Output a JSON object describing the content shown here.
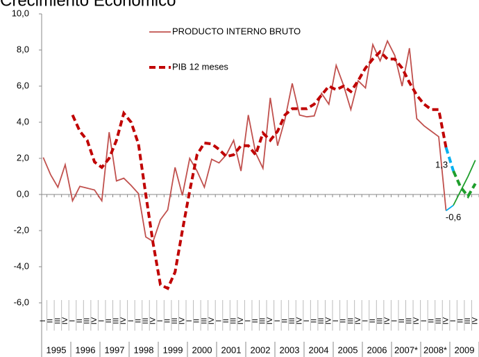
{
  "chart_data": {
    "type": "line",
    "title": "Crecimiento Económico",
    "categories": [
      "I",
      "II",
      "III",
      "IV",
      "I",
      "II",
      "III",
      "IV",
      "I",
      "II",
      "III",
      "IV",
      "I",
      "II",
      "III",
      "IV",
      "I",
      "II",
      "III",
      "IV",
      "I",
      "II",
      "III",
      "IV",
      "I",
      "II",
      "III",
      "IV",
      "I",
      "II",
      "III",
      "IV",
      "I",
      "II",
      "III",
      "IV",
      "I",
      "II",
      "III",
      "IV",
      "I",
      "II",
      "III",
      "IV",
      "I",
      "II",
      "III",
      "IV",
      "I",
      "II",
      "III",
      "IV",
      "I",
      "II",
      "III",
      "IV",
      "I",
      "II",
      "III",
      "IV"
    ],
    "years": [
      "1995",
      "1996",
      "1997",
      "1998",
      "1999",
      "2000",
      "2001",
      "2002",
      "2003",
      "2004",
      "2005",
      "2006",
      "2007*",
      "2008*",
      "2009"
    ],
    "ylim": [
      -6,
      10
    ],
    "yticks": [
      {
        "value": -6,
        "label": "-6,0"
      },
      {
        "value": -4,
        "label": "-4,0"
      },
      {
        "value": -2,
        "label": "-2,0"
      },
      {
        "value": 0,
        "label": "0,0"
      },
      {
        "value": 2,
        "label": "2,0"
      },
      {
        "value": 4,
        "label": "4,0"
      },
      {
        "value": 6,
        "label": "6,0"
      },
      {
        "value": 8,
        "label": "8,0"
      },
      {
        "value": 10,
        "label": "10,0"
      }
    ],
    "series": [
      {
        "name": "PRODUCTO INTERNO BRUTO",
        "color": "#c0504d",
        "dashed": false,
        "values": [
          2.05,
          1.1,
          0.4,
          1.65,
          -0.35,
          0.45,
          0.35,
          0.25,
          -0.35,
          3.45,
          0.75,
          0.9,
          0.5,
          0.05,
          -2.35,
          -2.6,
          -1.4,
          -0.85,
          1.5,
          -0.05,
          2.0,
          1.3,
          0.4,
          1.95,
          1.75,
          2.2,
          3.0,
          1.3,
          4.4,
          2.3,
          1.45,
          5.35,
          2.7,
          4.15,
          6.15,
          4.4,
          4.3,
          4.35,
          5.6,
          5.0,
          7.15,
          6.05,
          4.7,
          6.3,
          5.9,
          8.3,
          7.4,
          8.5,
          7.7,
          6.0,
          8.1,
          4.2,
          3.8,
          3.5,
          3.2,
          -0.9,
          null,
          null,
          null,
          null
        ]
      },
      {
        "name": "PIB 12 meses",
        "color": "#c00000",
        "dashed": true,
        "values": [
          null,
          null,
          null,
          null,
          4.4,
          3.5,
          3.0,
          1.8,
          1.5,
          2.0,
          3.0,
          4.5,
          4.0,
          2.8,
          0.0,
          -2.7,
          -5.0,
          -5.2,
          -4.3,
          -2.0,
          0.2,
          2.2,
          2.85,
          2.8,
          2.5,
          2.1,
          2.2,
          2.7,
          2.7,
          2.2,
          3.4,
          3.0,
          3.5,
          4.4,
          4.75,
          4.75,
          4.75,
          5.0,
          5.5,
          6.0,
          5.8,
          6.0,
          5.7,
          6.3,
          7.0,
          7.5,
          7.9,
          7.5,
          7.5,
          7.0,
          6.2,
          5.5,
          5.0,
          4.7,
          4.7,
          2.6,
          null,
          null,
          null,
          null
        ]
      },
      {
        "color": "#00b0f0",
        "dashed": true,
        "values": [
          null,
          null,
          null,
          null,
          null,
          null,
          null,
          null,
          null,
          null,
          null,
          null,
          null,
          null,
          null,
          null,
          null,
          null,
          null,
          null,
          null,
          null,
          null,
          null,
          null,
          null,
          null,
          null,
          null,
          null,
          null,
          null,
          null,
          null,
          null,
          null,
          null,
          null,
          null,
          null,
          null,
          null,
          null,
          null,
          null,
          null,
          null,
          null,
          null,
          null,
          null,
          null,
          null,
          null,
          null,
          2.6,
          1.3,
          null,
          null,
          null
        ],
        "value_labels": [
          null,
          null,
          null,
          null,
          null,
          null,
          null,
          null,
          null,
          null,
          null,
          null,
          null,
          null,
          null,
          null,
          null,
          null,
          null,
          null,
          null,
          null,
          null,
          null,
          null,
          null,
          null,
          null,
          null,
          null,
          null,
          null,
          null,
          null,
          null,
          null,
          null,
          null,
          null,
          null,
          null,
          null,
          null,
          null,
          null,
          null,
          null,
          null,
          null,
          null,
          null,
          null,
          null,
          null,
          null,
          null,
          "1,3",
          null,
          null,
          null
        ]
      },
      {
        "color": "#1f9e2c",
        "dashed": true,
        "values": [
          null,
          null,
          null,
          null,
          null,
          null,
          null,
          null,
          null,
          null,
          null,
          null,
          null,
          null,
          null,
          null,
          null,
          null,
          null,
          null,
          null,
          null,
          null,
          null,
          null,
          null,
          null,
          null,
          null,
          null,
          null,
          null,
          null,
          null,
          null,
          null,
          null,
          null,
          null,
          null,
          null,
          null,
          null,
          null,
          null,
          null,
          null,
          null,
          null,
          null,
          null,
          null,
          null,
          null,
          null,
          null,
          1.3,
          0.4,
          -0.1,
          0.6
        ]
      },
      {
        "color": "#00b0f0",
        "dashed": false,
        "values": [
          null,
          null,
          null,
          null,
          null,
          null,
          null,
          null,
          null,
          null,
          null,
          null,
          null,
          null,
          null,
          null,
          null,
          null,
          null,
          null,
          null,
          null,
          null,
          null,
          null,
          null,
          null,
          null,
          null,
          null,
          null,
          null,
          null,
          null,
          null,
          null,
          null,
          null,
          null,
          null,
          null,
          null,
          null,
          null,
          null,
          null,
          null,
          null,
          null,
          null,
          null,
          null,
          null,
          null,
          null,
          -0.9,
          -0.6,
          null,
          null,
          null
        ],
        "value_labels": [
          null,
          null,
          null,
          null,
          null,
          null,
          null,
          null,
          null,
          null,
          null,
          null,
          null,
          null,
          null,
          null,
          null,
          null,
          null,
          null,
          null,
          null,
          null,
          null,
          null,
          null,
          null,
          null,
          null,
          null,
          null,
          null,
          null,
          null,
          null,
          null,
          null,
          null,
          null,
          null,
          null,
          null,
          null,
          null,
          null,
          null,
          null,
          null,
          null,
          null,
          null,
          null,
          null,
          null,
          null,
          null,
          "-0,6",
          null,
          null,
          null
        ]
      },
      {
        "color": "#1f9e2c",
        "dashed": false,
        "values": [
          null,
          null,
          null,
          null,
          null,
          null,
          null,
          null,
          null,
          null,
          null,
          null,
          null,
          null,
          null,
          null,
          null,
          null,
          null,
          null,
          null,
          null,
          null,
          null,
          null,
          null,
          null,
          null,
          null,
          null,
          null,
          null,
          null,
          null,
          null,
          null,
          null,
          null,
          null,
          null,
          null,
          null,
          null,
          null,
          null,
          null,
          null,
          null,
          null,
          null,
          null,
          null,
          null,
          null,
          null,
          null,
          -0.6,
          0.2,
          1.0,
          1.9
        ]
      }
    ]
  }
}
